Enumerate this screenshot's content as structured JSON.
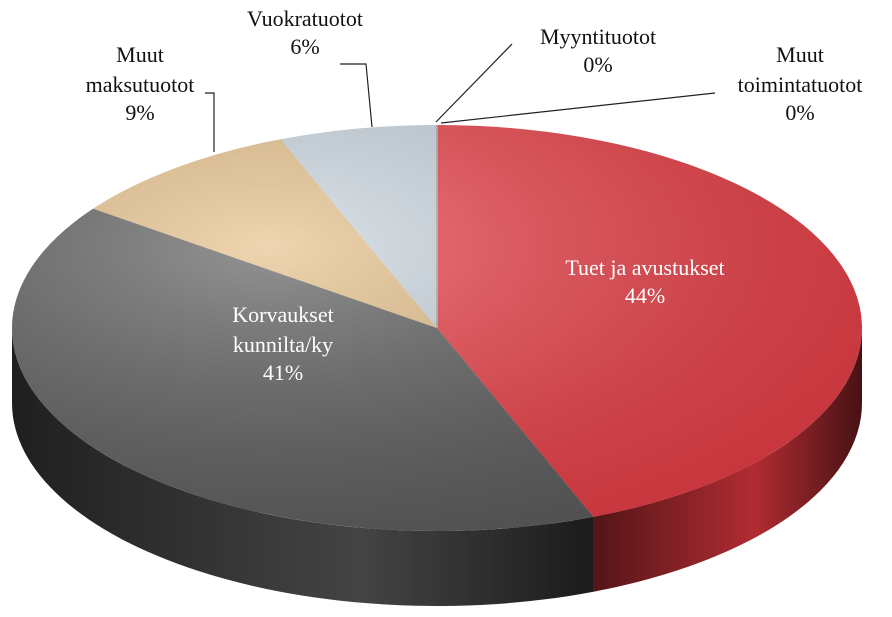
{
  "chart_data": {
    "type": "pie",
    "categories": [
      "Tuet ja avustukset",
      "Korvaukset\nkunnilta/ky",
      "Muut\nmaksutuotot",
      "Vuokratuotot",
      "Myyntituotot",
      "Muut\ntoimintatuotot"
    ],
    "values": [
      44,
      41,
      9,
      6,
      0,
      0
    ],
    "value_labels": [
      "44%",
      "41%",
      "9%",
      "6%",
      "0%",
      "0%"
    ],
    "colors": [
      "#ec3b43",
      "#5a5a5a",
      "#e6bf86",
      "#cbd7e1",
      "#b9c4cc",
      "#c8c8c8"
    ]
  }
}
